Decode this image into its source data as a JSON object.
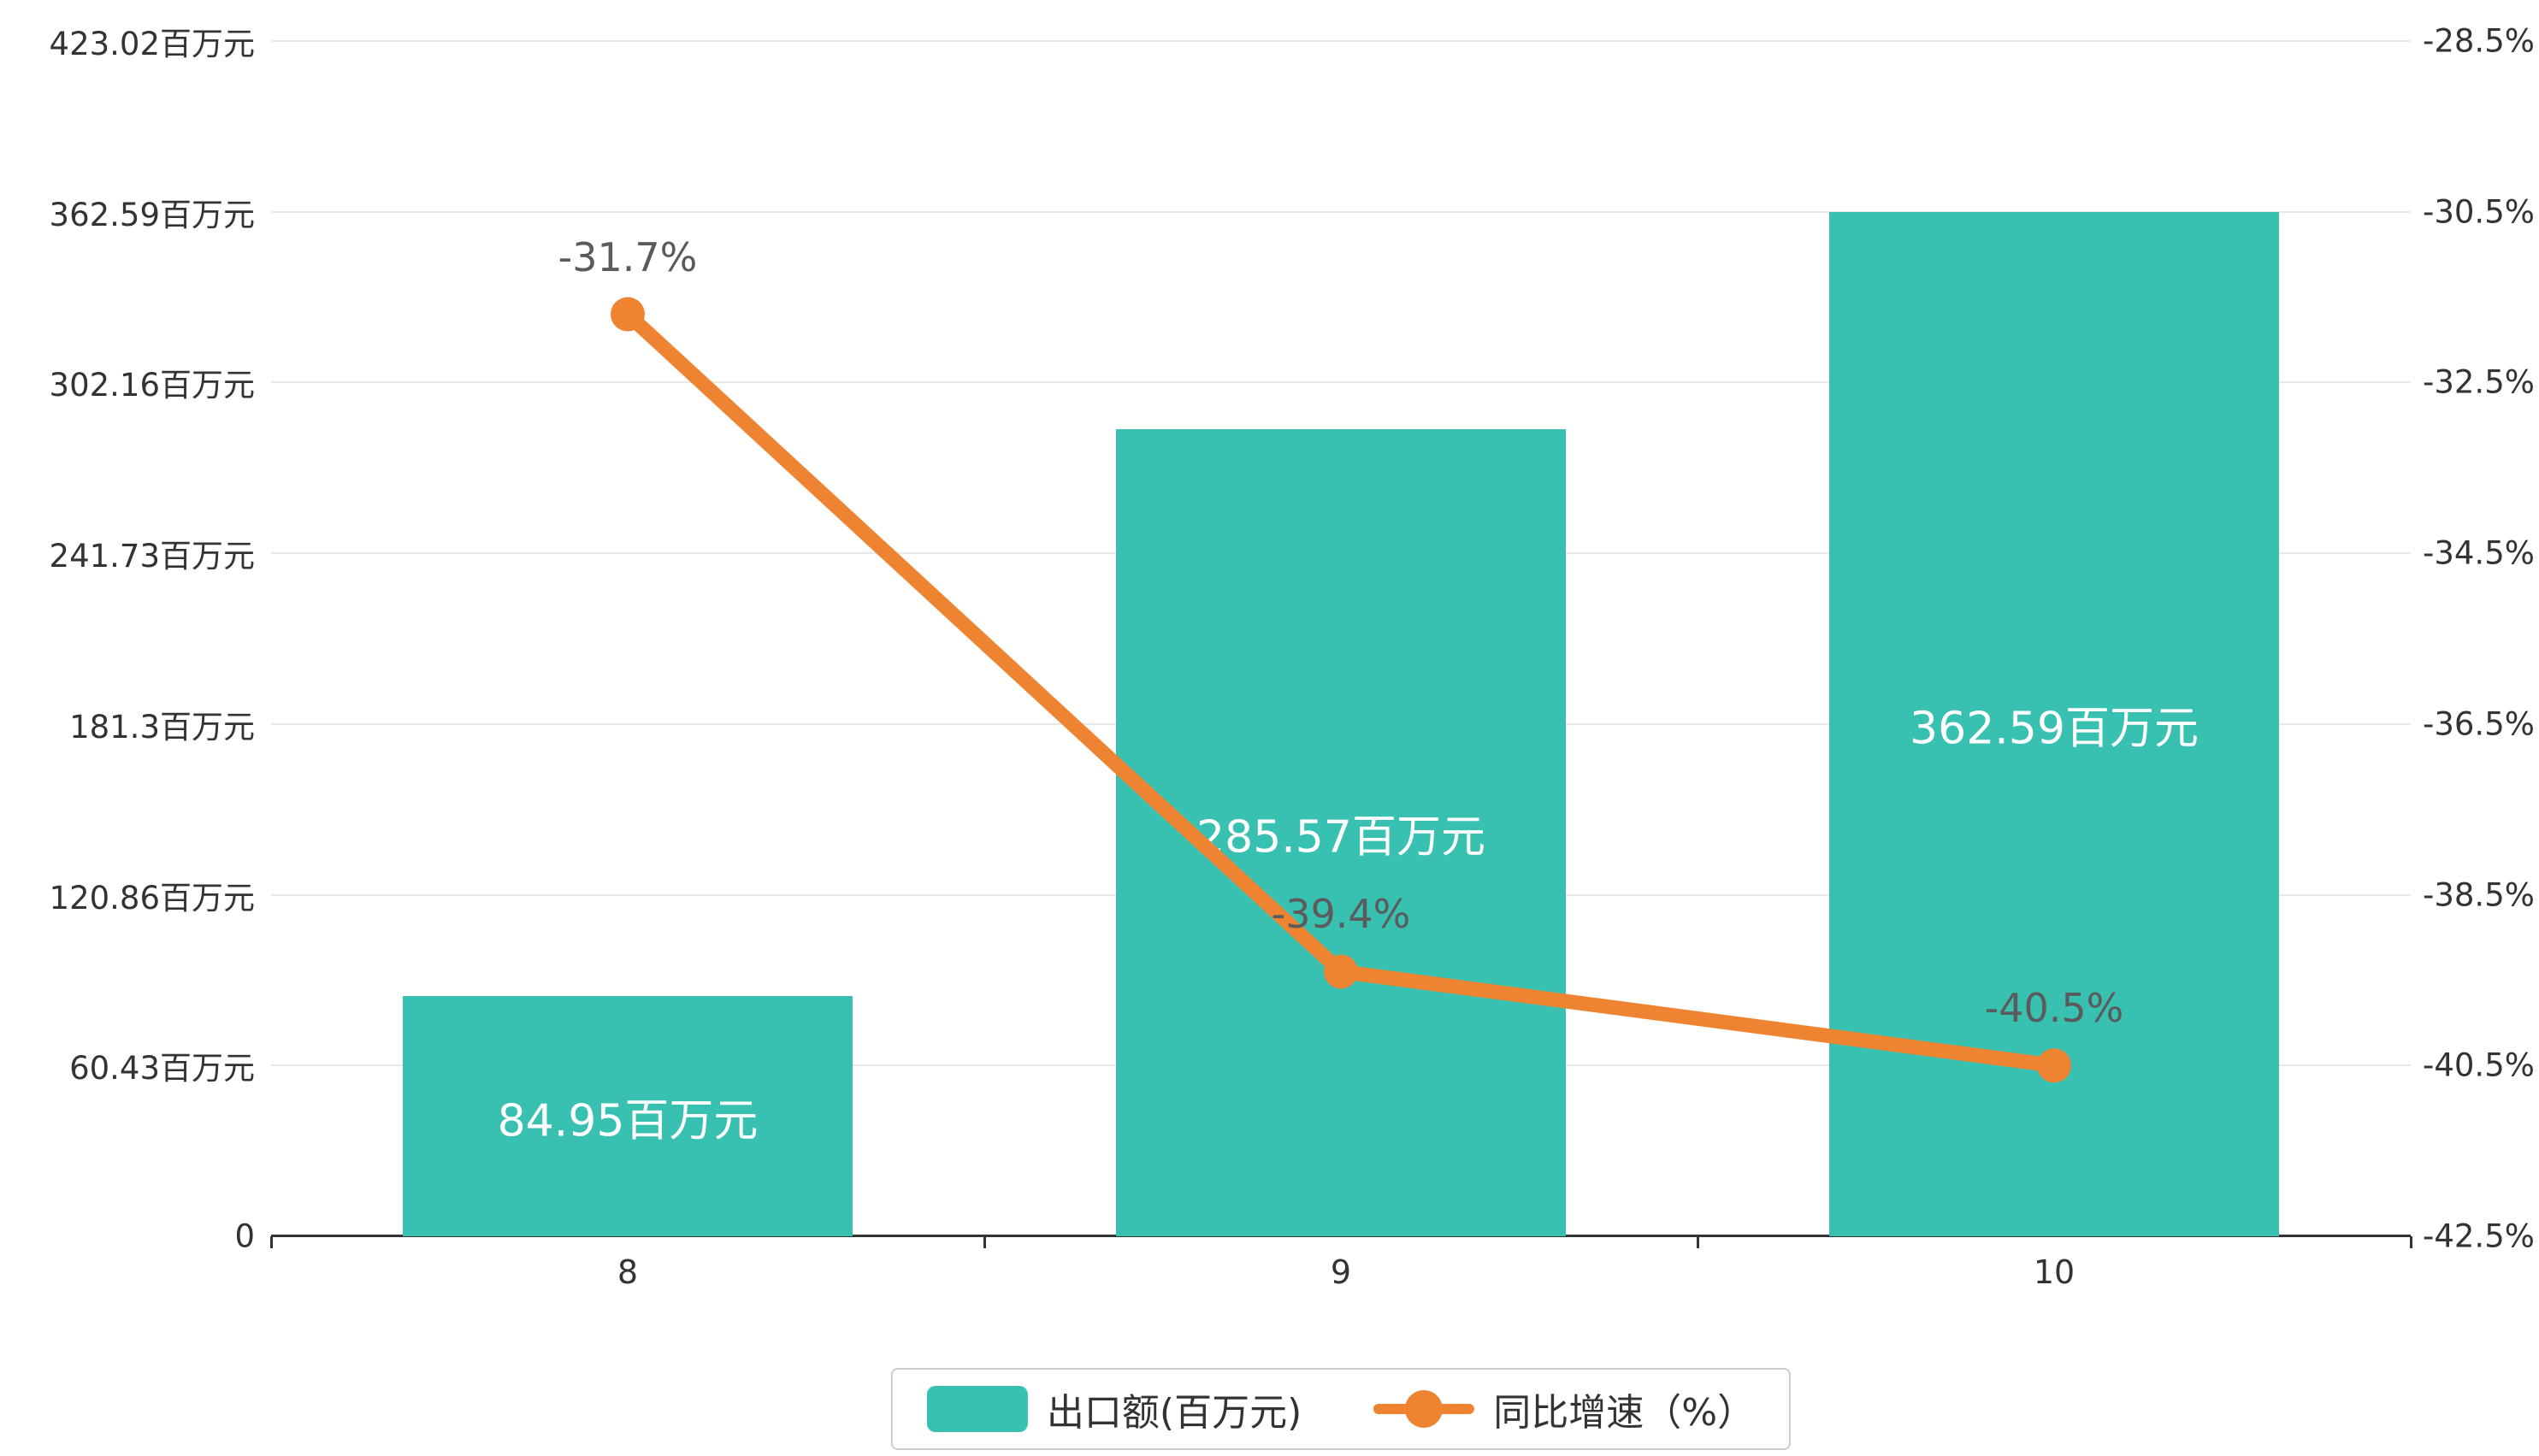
{
  "chart_data": {
    "type": "bar+line",
    "categories": [
      "8",
      "9",
      "10"
    ],
    "series": [
      {
        "name": "出口额(百万元)",
        "type": "bar",
        "y_axis": "left",
        "values": [
          84.95,
          285.57,
          362.59
        ],
        "data_labels": [
          "84.95百万元",
          "285.57百万元",
          "362.59百万元"
        ],
        "color": "#38c0b0",
        "label_color": "#ffffff"
      },
      {
        "name": "同比增速（%）",
        "type": "line",
        "y_axis": "right",
        "values": [
          -31.7,
          -39.4,
          -40.5
        ],
        "data_labels": [
          "-31.7%",
          "-39.4%",
          "-40.5%"
        ],
        "color": "#ee8432",
        "label_color": "#5b5b5b"
      }
    ],
    "left_axis": {
      "min": 0,
      "max": 423.02,
      "tick_labels": [
        "0",
        "60.43百万元",
        "120.86百万元",
        "181.3百万元",
        "241.73百万元",
        "302.16百万元",
        "362.59百万元",
        "423.02百万元"
      ]
    },
    "right_axis": {
      "min": -42.5,
      "max": -28.5,
      "tick_labels": [
        "-42.5%",
        "-40.5%",
        "-38.5%",
        "-36.5%",
        "-34.5%",
        "-32.5%",
        "-30.5%",
        "-28.5%"
      ]
    },
    "title": "",
    "xlabel": "",
    "grid": true,
    "legend_position": "bottom-center",
    "background": "#ffffff",
    "gridline_color": "#e8e8e8",
    "axis_line_color": "#333333",
    "legend_border_color": "#cccccc"
  },
  "legend": {
    "items": [
      {
        "label": "出口额(百万元)",
        "marker": "bar-swatch",
        "color": "#38c0b0"
      },
      {
        "label": "同比增速（%）",
        "marker": "line-with-dot",
        "color": "#ee8432"
      }
    ]
  }
}
